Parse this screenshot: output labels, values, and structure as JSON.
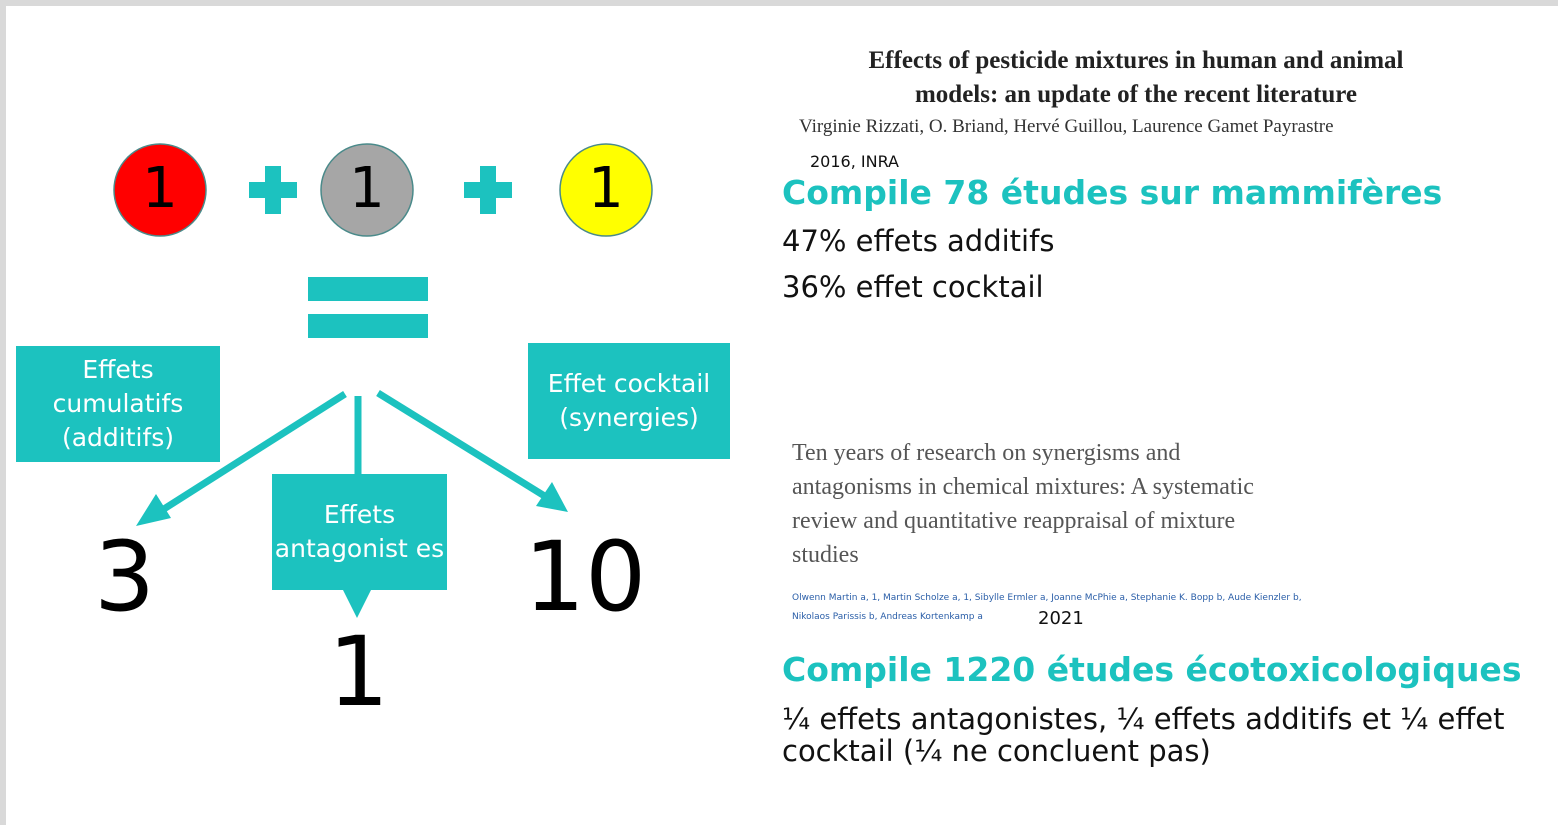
{
  "diagram": {
    "circles": [
      {
        "label": "1",
        "color": "#ff0000"
      },
      {
        "label": "1",
        "color": "#a6a6a6"
      },
      {
        "label": "1",
        "color": "#ffff00"
      }
    ],
    "boxes": [
      "Effets cumulatifs (additifs)",
      "Effet cocktail (synergies)",
      "Effets antagonist es"
    ],
    "results": [
      "3",
      "10",
      "1"
    ]
  },
  "papers": [
    {
      "title_lines": [
        "Effects of pesticide mixtures in human and animal",
        "models: an update of the recent literature"
      ],
      "authors": "Virginie Rizzati, O. Briand, Hervé Guillou, Laurence Gamet Payrastre",
      "year": "2016, INRA",
      "headline": "Compile 78 études sur mammifères",
      "findings": [
        "47% effets additifs",
        "36% effet cocktail"
      ]
    },
    {
      "title_lines": [
        "Ten years of research on synergisms and",
        "antagonisms in chemical mixtures: A systematic",
        "review and quantitative reappraisal of mixture",
        "studies"
      ],
      "authors_lines": [
        "Olwenn Martin a, 1, Martin Scholze a, 1, Sibylle Ermler a, Joanne McPhie a, Stephanie K. Bopp b, Aude Kienzler b,",
        "Nikolaos Parissis b, Andreas Kortenkamp a"
      ],
      "year": "2021",
      "headline": "Compile 1220 études écotoxicologiques",
      "findings": [
        "¼ effets antagonistes, ¼ effets additifs et ¼ effet cocktail (¼ ne concluent pas)"
      ]
    }
  ]
}
